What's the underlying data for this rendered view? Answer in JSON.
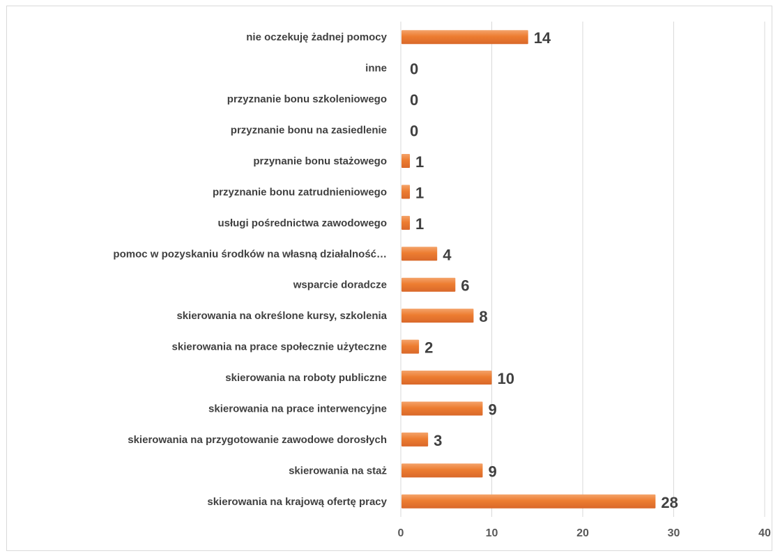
{
  "chart_data": {
    "type": "bar",
    "orientation": "horizontal",
    "categories": [
      "nie oczekuję żadnej pomocy",
      "inne",
      "przyznanie bonu szkoleniowego",
      "przyznanie bonu na zasiedlenie",
      "przynanie bonu stażowego",
      "przyznanie bonu zatrudnieniowego",
      "usługi pośrednictwa zawodowego",
      "pomoc w pozyskaniu środków na własną działalność…",
      "wsparcie doradcze",
      "skierowania na określone kursy, szkolenia",
      "skierowania na prace społecznie użyteczne",
      "skierowania na roboty publiczne",
      "skierowania na prace interwencyjne",
      "skierowania na przygotowanie zawodowe dorosłych",
      "skierowania na staż",
      "skierowania na krajową ofertę pracy"
    ],
    "values": [
      14,
      0,
      0,
      0,
      1,
      1,
      1,
      4,
      6,
      8,
      2,
      10,
      9,
      3,
      9,
      28
    ],
    "data_labels": [
      "14",
      "0",
      "0",
      "0",
      "1",
      "1",
      "1",
      "4",
      "6",
      "8",
      "2",
      "10",
      "9",
      "3",
      "9",
      "28"
    ],
    "xlim": [
      0,
      40
    ],
    "x_ticks": [
      "0",
      "10",
      "20",
      "30",
      "40"
    ],
    "x_tick_values": [
      0,
      10,
      20,
      30,
      40
    ],
    "grid": "vertical",
    "legend": "none",
    "colors": {
      "bar_light": "#f4a36a",
      "bar": "#ed7d31",
      "bar_dark": "#d9682a",
      "grid": "#d9d9d9",
      "text": "#404040"
    }
  }
}
